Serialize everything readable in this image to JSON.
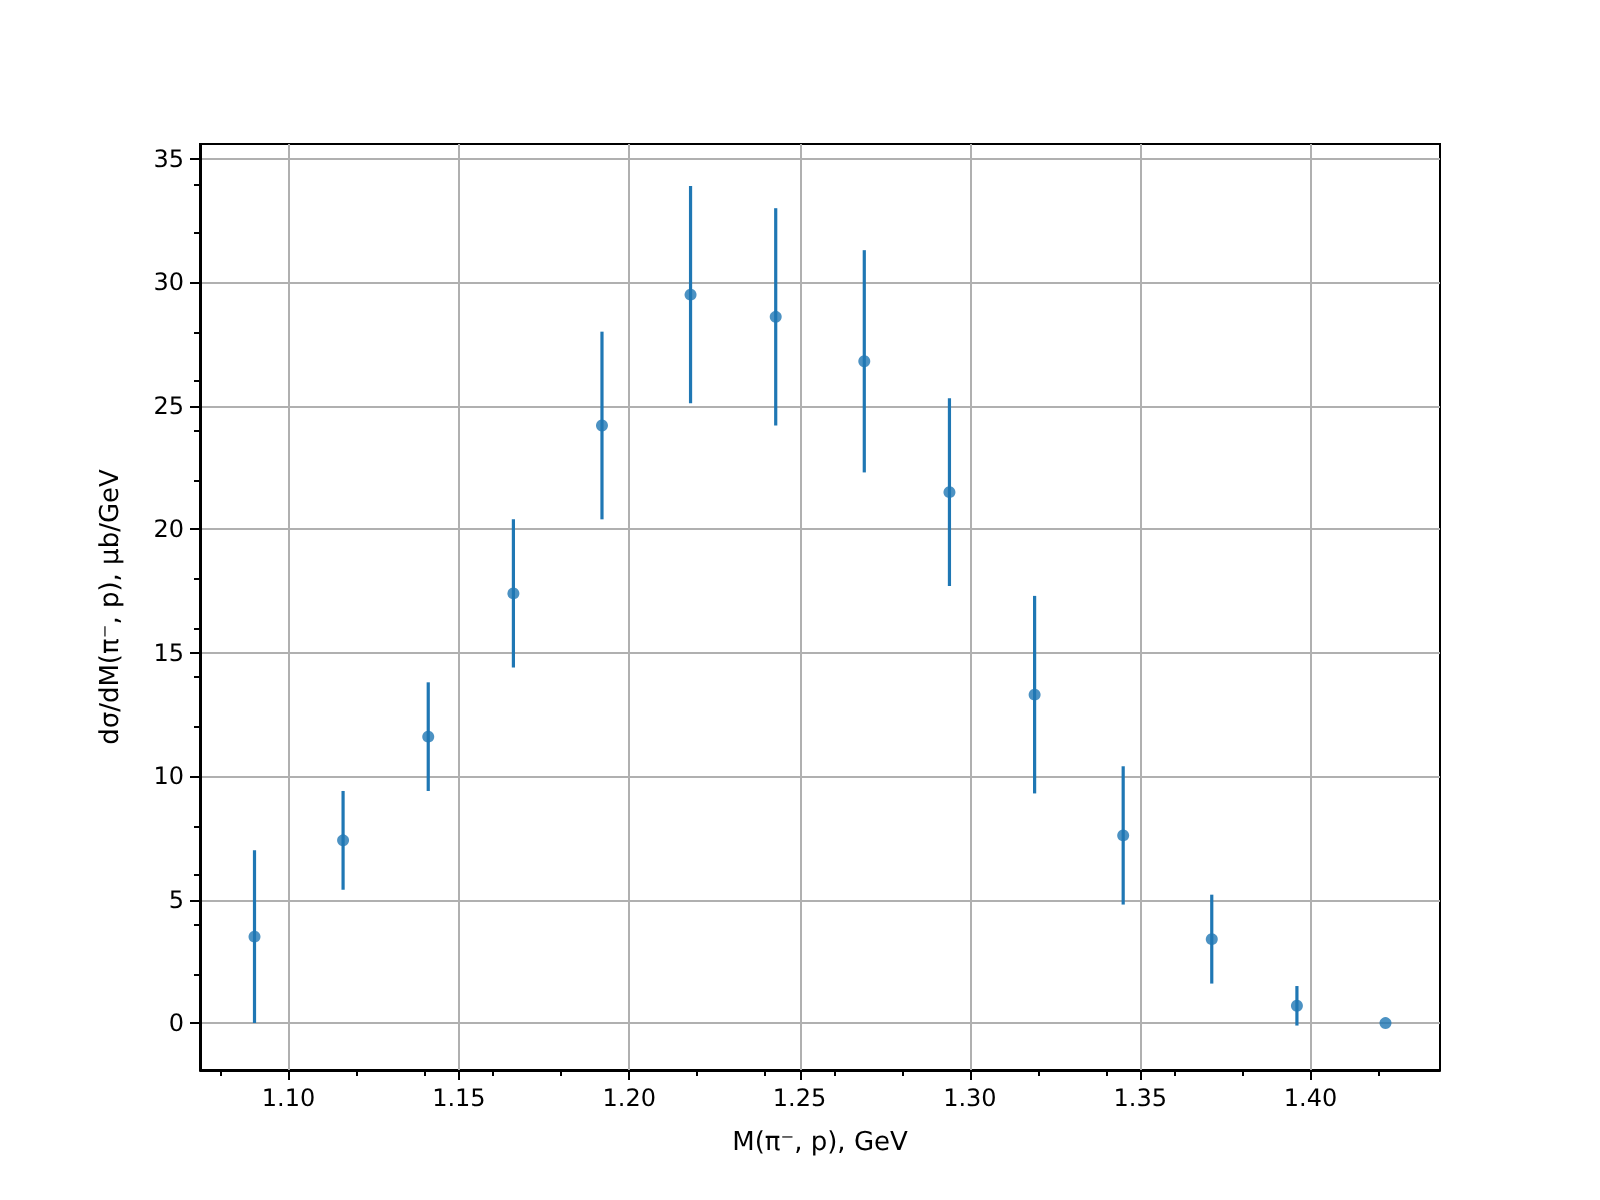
{
  "chart_data": {
    "type": "scatter",
    "xlabel": "M(π⁻, p), GeV",
    "ylabel": "dσ/dM(π⁻, p), μb/GeV",
    "x": [
      1.09,
      1.116,
      1.141,
      1.166,
      1.192,
      1.218,
      1.243,
      1.269,
      1.294,
      1.319,
      1.345,
      1.371,
      1.396,
      1.422
    ],
    "series": [
      {
        "color": "#1f77b4",
        "values": [
          3.5,
          7.4,
          11.6,
          17.4,
          24.2,
          29.5,
          28.6,
          26.8,
          21.5,
          13.3,
          7.6,
          3.4,
          0.7,
          0.0
        ],
        "errors": [
          3.5,
          2.0,
          2.2,
          3.0,
          3.8,
          4.4,
          4.4,
          4.5,
          3.8,
          4.0,
          2.8,
          1.8,
          0.8,
          null
        ]
      }
    ],
    "xlim": [
      1.074,
      1.438
    ],
    "xticks": [
      {
        "value": 1.1,
        "label": "1.10"
      },
      1.15,
      {
        "value": 1.2,
        "label": "1.20"
      },
      1.25,
      {
        "value": 1.3,
        "label": "1.30"
      },
      1.35,
      {
        "value": 1.4,
        "label": "1.40"
      }
    ],
    "ylim": [
      -1.9,
      35.6
    ],
    "yticks": [
      0,
      5,
      10,
      15,
      20,
      25,
      30,
      35
    ],
    "grid": true,
    "marker": "circle"
  }
}
